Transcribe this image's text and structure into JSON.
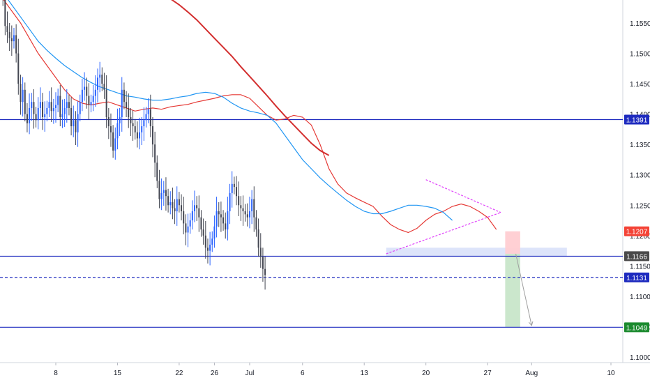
{
  "chart_data": {
    "type": "candlestick",
    "title": "",
    "xlabel": "",
    "ylabel": "",
    "ylim": [
      1.096,
      1.16
    ],
    "y_ticks": [
      1.1,
      1.105,
      1.11,
      1.115,
      1.12,
      1.125,
      1.13,
      1.135,
      1.14,
      1.145,
      1.15,
      1.155
    ],
    "x_tick_labels": [
      {
        "label": "8",
        "day": 8
      },
      {
        "label": "15",
        "day": 15
      },
      {
        "label": "22",
        "day": 22
      },
      {
        "label": "26",
        "day": 26
      },
      {
        "label": "Jul",
        "day": 30
      },
      {
        "label": "6",
        "day": 36
      },
      {
        "label": "13",
        "day": 43
      },
      {
        "label": "20",
        "day": 50
      },
      {
        "label": "27",
        "day": 57
      },
      {
        "label": "Aug",
        "day": 62
      },
      {
        "label": "10",
        "day": 71
      }
    ],
    "grid": false,
    "candles": {
      "start_day": 2,
      "step_days": 0.25,
      "closes": [
        1.159,
        1.1545,
        1.1535,
        1.1525,
        1.152,
        1.153,
        1.15,
        1.145,
        1.142,
        1.144,
        1.14,
        1.1385,
        1.141,
        1.142,
        1.14,
        1.139,
        1.141,
        1.142,
        1.1395,
        1.14,
        1.141,
        1.142,
        1.1405,
        1.141,
        1.1415,
        1.143,
        1.1395,
        1.14,
        1.141,
        1.142,
        1.141,
        1.138,
        1.139,
        1.137,
        1.14,
        1.142,
        1.144,
        1.1445,
        1.143,
        1.1415,
        1.142,
        1.143,
        1.144,
        1.146,
        1.1465,
        1.145,
        1.144,
        1.1395,
        1.138,
        1.137,
        1.134,
        1.136,
        1.1385,
        1.1395,
        1.144,
        1.142,
        1.141,
        1.1395,
        1.1385,
        1.138,
        1.137,
        1.136,
        1.137,
        1.138,
        1.139,
        1.14,
        1.1408,
        1.138,
        1.135,
        1.132,
        1.129,
        1.126,
        1.127,
        1.1275,
        1.1265,
        1.125,
        1.1255,
        1.1245,
        1.124,
        1.126,
        1.125,
        1.124,
        1.122,
        1.1205,
        1.1215,
        1.1225,
        1.124,
        1.125,
        1.1245,
        1.123,
        1.121,
        1.12,
        1.118,
        1.1175,
        1.1185,
        1.1195,
        1.1215,
        1.124,
        1.1235,
        1.123,
        1.122,
        1.121,
        1.124,
        1.127,
        1.1285,
        1.128,
        1.1265,
        1.125,
        1.1245,
        1.124,
        1.1235,
        1.123,
        1.124,
        1.126,
        1.123,
        1.121,
        1.118,
        1.1165,
        1.1145,
        1.1135
      ]
    },
    "moving_averages": [
      {
        "color": "#e53935",
        "start_day": 2,
        "values": [
          1.159,
          1.157,
          1.155,
          1.1525,
          1.15,
          1.148,
          1.146,
          1.144,
          1.1425,
          1.1418,
          1.1415,
          1.1418,
          1.142,
          1.1415,
          1.141,
          1.1405,
          1.1408,
          1.141,
          1.1408,
          1.1412,
          1.1414,
          1.1416,
          1.142,
          1.1423,
          1.1426,
          1.143,
          1.1432,
          1.1432,
          1.1426,
          1.1412,
          1.1398,
          1.139,
          1.1392,
          1.1398,
          1.1395,
          1.1382,
          1.135,
          1.131,
          1.1285,
          1.127,
          1.1262,
          1.1255,
          1.1248,
          1.1232,
          1.1218,
          1.121,
          1.1205,
          1.1212,
          1.1225,
          1.1235,
          1.124,
          1.1248,
          1.1252,
          1.1248,
          1.124,
          1.123,
          1.121
        ]
      },
      {
        "color": "#2196f3",
        "start_day": 2,
        "values": [
          1.16,
          1.158,
          1.156,
          1.154,
          1.152,
          1.1505,
          1.1492,
          1.148,
          1.147,
          1.146,
          1.1452,
          1.1445,
          1.144,
          1.1435,
          1.143,
          1.1428,
          1.1425,
          1.1423,
          1.1423,
          1.1425,
          1.1428,
          1.143,
          1.1434,
          1.1436,
          1.1434,
          1.1428,
          1.1418,
          1.141,
          1.1405,
          1.1402,
          1.1398,
          1.1385,
          1.1365,
          1.1345,
          1.1325,
          1.131,
          1.1295,
          1.1282,
          1.127,
          1.1258,
          1.1248,
          1.124,
          1.1236,
          1.1236,
          1.124,
          1.1245,
          1.125,
          1.125,
          1.1248,
          1.1245,
          1.1238,
          1.1225
        ]
      },
      {
        "color": "#d32f2f",
        "start_day": 20,
        "values": [
          1.1598,
          1.159,
          1.158,
          1.1568,
          1.1555,
          1.154,
          1.1525,
          1.151,
          1.1495,
          1.1478,
          1.1462,
          1.1446,
          1.143,
          1.1413,
          1.1397,
          1.1382,
          1.1367,
          1.1352,
          1.134,
          1.1332
        ]
      }
    ],
    "horizontal_lines": [
      {
        "value": 1.1391,
        "label": "1.1391",
        "color": "#1e2bbf",
        "style": "solid"
      },
      {
        "value": 1.1166,
        "label": "1.1166",
        "color": "#1e2bbf",
        "style": "solid"
      },
      {
        "value": 1.1131,
        "label": "1.1131",
        "color": "#1e2bbf",
        "style": "dashed"
      },
      {
        "value": 1.1049,
        "label": "1.1049",
        "color": "#1e2bbf",
        "style": "solid"
      }
    ],
    "price_labels": [
      {
        "value": 1.1391,
        "label": "1.1391",
        "bg": "#1e2bbf"
      },
      {
        "value": 1.1207,
        "label": "1.1207",
        "bg": "#f44336"
      },
      {
        "value": 1.1166,
        "label": "1.1166",
        "bg": "#4a4a4a"
      },
      {
        "value": 1.1131,
        "label": "1.1131",
        "bg": "#1e2bbf"
      },
      {
        "value": 1.1049,
        "label": "1.1049",
        "bg": "#1b8a2e"
      }
    ],
    "triangle": {
      "color": "#e040fb",
      "upper": [
        [
          50.0,
          1.1292
        ],
        [
          58.5,
          1.1238
        ]
      ],
      "lower": [
        [
          45.5,
          1.117
        ],
        [
          58.5,
          1.1238
        ]
      ]
    },
    "support_zone": {
      "day_start": 45.5,
      "day_end": 66.0,
      "y_top": 1.118,
      "y_bottom": 1.1166
    },
    "position": {
      "day_start": 59.0,
      "day_end": 60.7,
      "stop": 1.1207,
      "entry": 1.117,
      "target": 1.1049
    },
    "projection_arrow": [
      [
        60.2,
        1.117
      ],
      [
        62.0,
        1.1052
      ]
    ],
    "colors": {
      "bull": "#2962ff",
      "bear": "#434651",
      "stop_zone": "#ffcdd2",
      "target_zone": "#c8e6c9"
    }
  }
}
